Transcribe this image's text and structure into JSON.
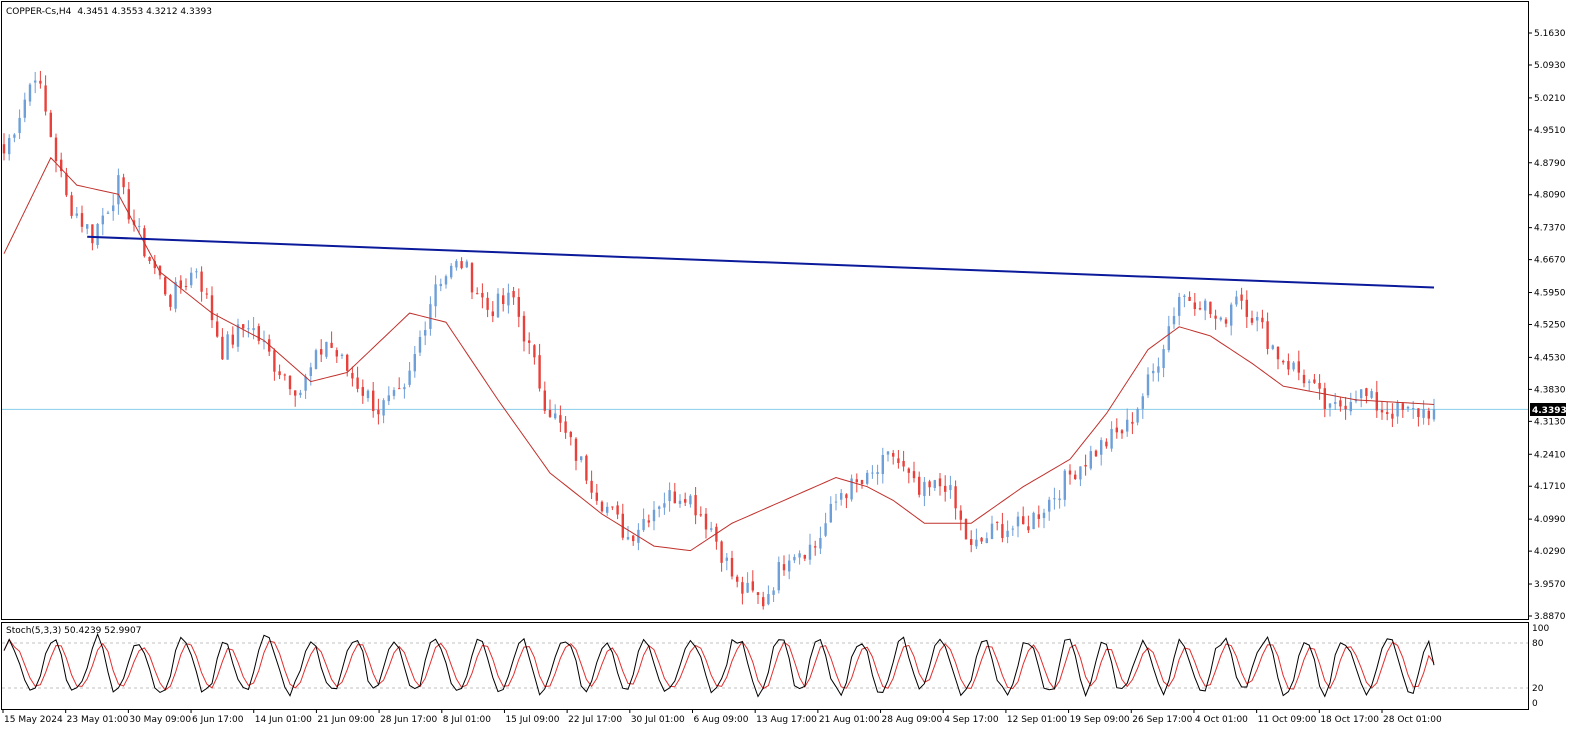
{
  "header": {
    "symbol": "COPPER-Cs,H4",
    "ohlc": "4.3451 4.3553 4.3212 4.3393"
  },
  "indicator": {
    "label": "Stoch(5,3,3) 50.4239 52.9907",
    "levels": [
      "100",
      "80",
      "20",
      "0"
    ]
  },
  "current_price_label": "4.3393",
  "colors": {
    "bull": "#6f9fd8",
    "bear": "#e8413c",
    "ma": "#c0302b",
    "trendline": "#0a1a9a",
    "price_line": "#87ceeb",
    "stoch_main": "#000000",
    "stoch_signal": "#e03030"
  },
  "chart_data": {
    "type": "candlestick",
    "symbol": "COPPER-Cs",
    "timeframe": "H4",
    "y_ticks": [
      "5.1630",
      "5.0930",
      "5.0210",
      "4.9510",
      "4.8790",
      "4.8090",
      "4.7370",
      "4.6670",
      "4.5950",
      "4.5250",
      "4.4530",
      "4.3830",
      "4.3130",
      "4.2410",
      "4.1710",
      "4.0990",
      "4.0290",
      "3.9570",
      "3.8870"
    ],
    "ylim": [
      3.887,
      5.163
    ],
    "x_ticks": [
      "15 May 2024",
      "23 May 01:00",
      "30 May 09:00",
      "6 Jun 17:00",
      "14 Jun 01:00",
      "21 Jun 09:00",
      "28 Jun 17:00",
      "8 Jul 01:00",
      "15 Jul 09:00",
      "22 Jul 17:00",
      "30 Jul 01:00",
      "6 Aug 09:00",
      "13 Aug 17:00",
      "21 Aug 01:00",
      "28 Aug 09:00",
      "4 Sep 17:00",
      "12 Sep 01:00",
      "19 Sep 09:00",
      "26 Sep 17:00",
      "4 Oct 01:00",
      "11 Oct 09:00",
      "18 Oct 17:00",
      "28 Oct 01:00"
    ],
    "close_path": [
      [
        0,
        4.9
      ],
      [
        6,
        5.08
      ],
      [
        12,
        4.8
      ],
      [
        17,
        4.72
      ],
      [
        22,
        4.83
      ],
      [
        27,
        4.69
      ],
      [
        32,
        4.58
      ],
      [
        37,
        4.65
      ],
      [
        42,
        4.47
      ],
      [
        47,
        4.53
      ],
      [
        52,
        4.44
      ],
      [
        57,
        4.38
      ],
      [
        62,
        4.49
      ],
      [
        67,
        4.41
      ],
      [
        72,
        4.34
      ],
      [
        77,
        4.37
      ],
      [
        83,
        4.62
      ],
      [
        88,
        4.66
      ],
      [
        93,
        4.56
      ],
      [
        98,
        4.58
      ],
      [
        104,
        4.36
      ],
      [
        110,
        4.24
      ],
      [
        115,
        4.14
      ],
      [
        120,
        4.06
      ],
      [
        126,
        4.14
      ],
      [
        131,
        4.16
      ],
      [
        136,
        4.08
      ],
      [
        141,
        3.95
      ],
      [
        146,
        3.92
      ],
      [
        151,
        4.03
      ],
      [
        156,
        4.04
      ],
      [
        161,
        4.16
      ],
      [
        166,
        4.18
      ],
      [
        171,
        4.24
      ],
      [
        176,
        4.15
      ],
      [
        181,
        4.18
      ],
      [
        186,
        4.03
      ],
      [
        191,
        4.08
      ],
      [
        196,
        4.08
      ],
      [
        201,
        4.14
      ],
      [
        206,
        4.21
      ],
      [
        211,
        4.26
      ],
      [
        216,
        4.3
      ],
      [
        221,
        4.42
      ],
      [
        226,
        4.59
      ],
      [
        230,
        4.58
      ],
      [
        234,
        4.52
      ],
      [
        237,
        4.6
      ],
      [
        241,
        4.53
      ],
      [
        245,
        4.46
      ],
      [
        250,
        4.41
      ],
      [
        255,
        4.33
      ],
      [
        260,
        4.38
      ],
      [
        265,
        4.34
      ],
      [
        270,
        4.33
      ],
      [
        275,
        4.3393
      ]
    ],
    "ma_series": [
      [
        0,
        4.68
      ],
      [
        9,
        4.89
      ],
      [
        14,
        4.83
      ],
      [
        22,
        4.81
      ],
      [
        30,
        4.64
      ],
      [
        40,
        4.55
      ],
      [
        50,
        4.49
      ],
      [
        59,
        4.4
      ],
      [
        66,
        4.42
      ],
      [
        78,
        4.55
      ],
      [
        85,
        4.53
      ],
      [
        95,
        4.36
      ],
      [
        105,
        4.2
      ],
      [
        115,
        4.11
      ],
      [
        125,
        4.04
      ],
      [
        132,
        4.03
      ],
      [
        140,
        4.09
      ],
      [
        150,
        4.14
      ],
      [
        160,
        4.19
      ],
      [
        166,
        4.17
      ],
      [
        171,
        4.14
      ],
      [
        177,
        4.09
      ],
      [
        186,
        4.09
      ],
      [
        196,
        4.17
      ],
      [
        205,
        4.23
      ],
      [
        212,
        4.33
      ],
      [
        220,
        4.47
      ],
      [
        226,
        4.52
      ],
      [
        232,
        4.5
      ],
      [
        240,
        4.44
      ],
      [
        246,
        4.39
      ],
      [
        260,
        4.36
      ],
      [
        275,
        4.35
      ]
    ],
    "trendline": {
      "start_bar": 16,
      "start_price": 4.717,
      "end_bar": 275,
      "end_price": 4.606
    },
    "stoch": {
      "ylim": [
        0,
        100
      ],
      "levels": [
        80,
        20
      ],
      "main_last": 50.4239,
      "signal_last": 52.9907
    }
  }
}
